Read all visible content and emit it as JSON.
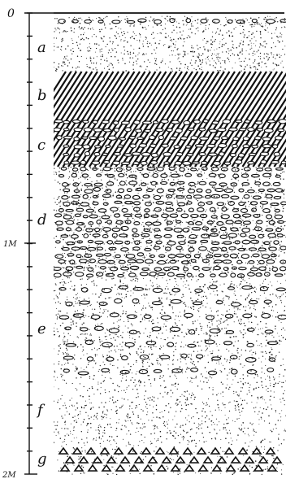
{
  "scale": {
    "top_label": "0",
    "mid_label": "1M",
    "bottom_label": "2M"
  },
  "layers": [
    {
      "id": "a",
      "label": "a",
      "texture": "fine-dots-with-pebble-row"
    },
    {
      "id": "b",
      "label": "b",
      "texture": "diagonal-hatching"
    },
    {
      "id": "c",
      "label": "c",
      "texture": "hatching-with-pebbles"
    },
    {
      "id": "d",
      "label": "d",
      "texture": "dense-pebbles"
    },
    {
      "id": "e",
      "label": "e",
      "texture": "dots-with-scattered-pebbles"
    },
    {
      "id": "f",
      "label": "f",
      "texture": "fine-dots"
    },
    {
      "id": "g",
      "label": "g",
      "texture": "triangles"
    }
  ],
  "colors": {
    "ink": "#111111",
    "paper": "#ffffff"
  }
}
